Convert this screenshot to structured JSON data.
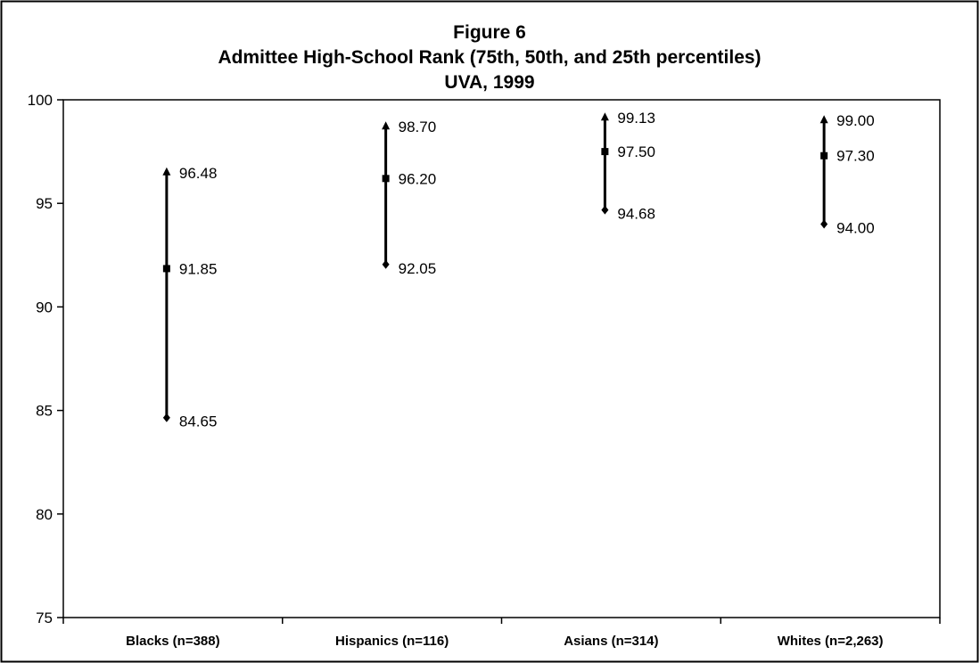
{
  "chart_data": {
    "type": "range",
    "title_lines": [
      "Figure 6",
      "Admittee High-School Rank (75th, 50th, and 25th percentiles)",
      "UVA, 1999"
    ],
    "xlabel": "",
    "ylabel": "",
    "ylim": [
      75,
      100
    ],
    "yticks": [
      "75",
      "80",
      "85",
      "90",
      "95",
      "100"
    ],
    "grid": false,
    "legend": "none",
    "categories": [
      "Blacks (n=388)",
      "Hispanics (n=116)",
      "Asians (n=314)",
      "Whites (n=2,263)"
    ],
    "series": [
      {
        "name": "75th percentile",
        "marker": "triangle",
        "values": [
          96.48,
          98.7,
          99.13,
          99.0
        ],
        "labels": [
          "96.48",
          "98.70",
          "99.13",
          "99.00"
        ]
      },
      {
        "name": "50th percentile",
        "marker": "square",
        "values": [
          91.85,
          96.2,
          97.5,
          97.3
        ],
        "labels": [
          "91.85",
          "96.20",
          "97.50",
          "97.30"
        ]
      },
      {
        "name": "25th percentile",
        "marker": "diamond",
        "values": [
          84.65,
          92.05,
          94.68,
          94.0
        ],
        "labels": [
          "84.65",
          "92.05",
          "94.68",
          "94.00"
        ]
      }
    ],
    "colors": {
      "line": "#000000",
      "frame": "#000000",
      "background": "#ffffff"
    }
  }
}
